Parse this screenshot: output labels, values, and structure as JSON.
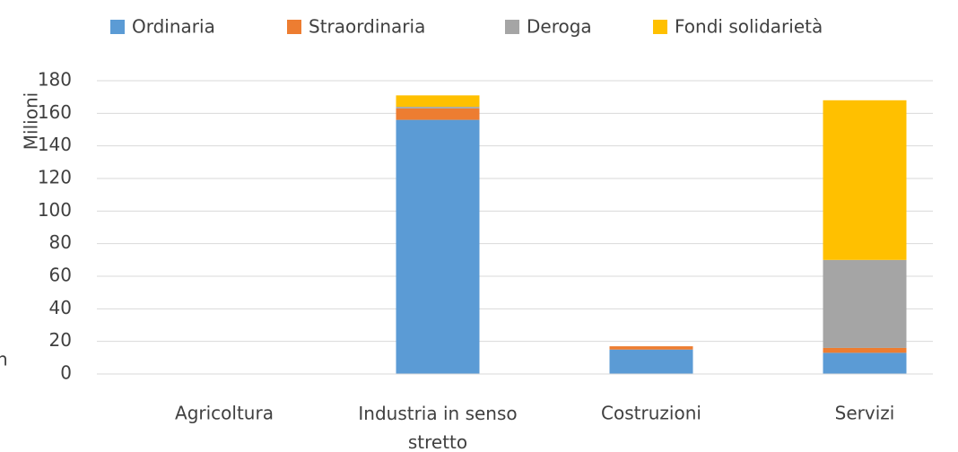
{
  "chart_data": {
    "type": "stacked_bar",
    "categories": [
      "Agricoltura",
      "Industria in senso stretto",
      "Costruzioni",
      "Servizi"
    ],
    "series": [
      {
        "name": "Ordinaria",
        "color": "#5b9bd5",
        "values": [
          0,
          156,
          15,
          13
        ]
      },
      {
        "name": "Straordinaria",
        "color": "#ed7d31",
        "values": [
          0,
          7,
          2,
          3
        ]
      },
      {
        "name": "Deroga",
        "color": "#a5a5a5",
        "values": [
          0,
          1,
          0,
          54
        ]
      },
      {
        "name": "Fondi solidarietà",
        "color": "#ffc000",
        "values": [
          0,
          7,
          0,
          98
        ]
      }
    ],
    "ylabel": "Milioni",
    "annotation": "n",
    "ylim": [
      0,
      180
    ],
    "yticks": [
      0,
      20,
      40,
      60,
      80,
      100,
      120,
      140,
      160,
      180
    ],
    "grid": true,
    "legend": "top"
  }
}
